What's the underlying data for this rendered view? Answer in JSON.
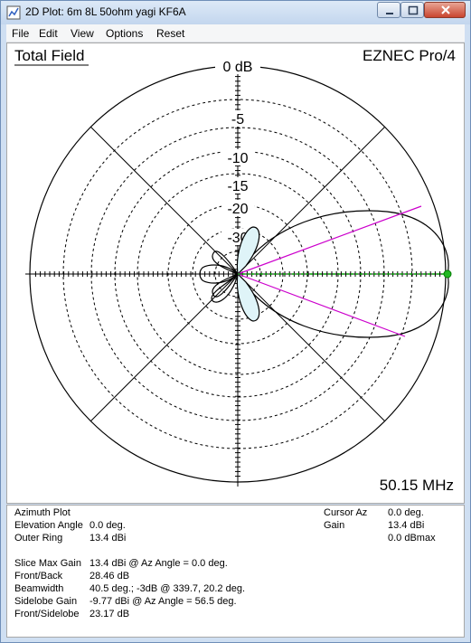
{
  "window": {
    "title": "2D Plot: 6m 8L 50ohm yagi KF6A",
    "icon": "chart-app-icon"
  },
  "menu": {
    "items": [
      "File",
      "Edit",
      "View",
      "Options",
      "Reset"
    ]
  },
  "plot": {
    "heading": "Total Field",
    "brand": "EZNEC Pro/4",
    "frequency": "50.15 MHz",
    "ring_labels": [
      "0 dB",
      "-5",
      "-10",
      "-15",
      "-20",
      "-30"
    ],
    "colors": {
      "pattern": "#000000",
      "beamwidth_lines": "#cc00cc",
      "cursor_line": "#00a000",
      "cursor_marker": "#22b822",
      "sidelobe_fill": "#dff4f8"
    }
  },
  "info": {
    "plot_type": "Azimuth Plot",
    "elevation_label": "Elevation Angle",
    "elevation_value": "0.0 deg.",
    "outer_ring_label": "Outer Ring",
    "outer_ring_value": "13.4 dBi",
    "cursor_az_label": "Cursor Az",
    "cursor_az_value": "0.0 deg.",
    "gain_label": "Gain",
    "gain_value": "13.4 dBi",
    "gain_max_value": "0.0 dBmax",
    "slice_max_label": "Slice Max Gain",
    "slice_max_value": "13.4 dBi @ Az Angle = 0.0 deg.",
    "front_back_label": "Front/Back",
    "front_back_value": "28.46 dB",
    "beamwidth_label": "Beamwidth",
    "beamwidth_value": "40.5 deg.; -3dB @ 339.7, 20.2 deg.",
    "sidelobe_label": "Sidelobe Gain",
    "sidelobe_value": "-9.77 dBi @ Az Angle = 56.5 deg.",
    "front_side_label": "Front/Sidelobe",
    "front_side_value": "23.17 dB"
  }
}
